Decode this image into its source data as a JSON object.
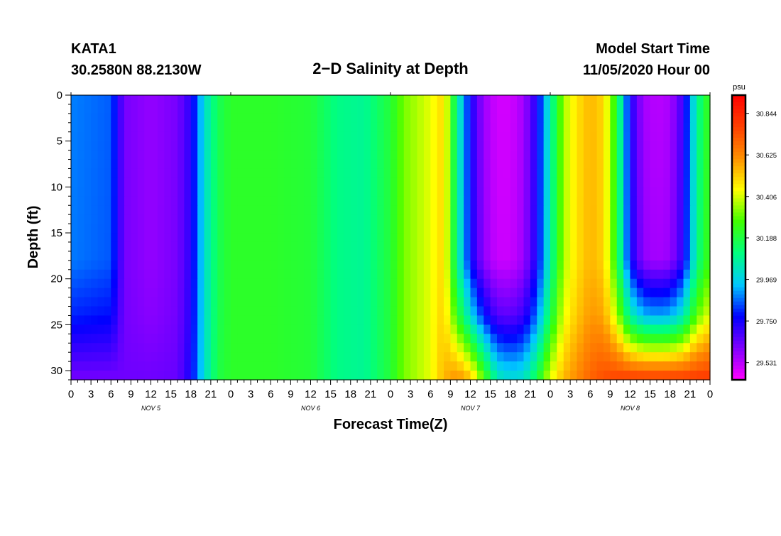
{
  "header": {
    "station": "KATA1",
    "coords": "30.2580N 88.2130W",
    "title": "2−D Salinity at Depth",
    "model_label": "Model Start Time",
    "model_time": "11/05/2020 Hour 00"
  },
  "chart_data": {
    "type": "heatmap",
    "title": "2−D Salinity at Depth",
    "xlabel": "Forecast Time(Z)",
    "ylabel": "Depth (ft)",
    "x_range_hours": [
      0,
      96
    ],
    "y_range": [
      0,
      31
    ],
    "y_inverted": true,
    "x_tick_labels": [
      "0",
      "3",
      "6",
      "9",
      "12",
      "15",
      "18",
      "21",
      "0",
      "3",
      "6",
      "9",
      "12",
      "15",
      "18",
      "21",
      "0",
      "3",
      "6",
      "9",
      "12",
      "15",
      "18",
      "21",
      "0",
      "3",
      "6",
      "9",
      "12",
      "15",
      "18",
      "21",
      "0"
    ],
    "y_tick_labels": [
      "0",
      "5",
      "10",
      "15",
      "20",
      "25",
      "30"
    ],
    "day_labels": [
      {
        "label": "NOV  5",
        "hour": 12
      },
      {
        "label": "NOV  6",
        "hour": 36
      },
      {
        "label": "NOV  7",
        "hour": 60
      },
      {
        "label": "NOV  8",
        "hour": 84
      }
    ],
    "colorbar": {
      "unit": "psu",
      "min": 29.44,
      "max": 30.94,
      "tick_labels": [
        "30.844",
        "30.625",
        "30.406",
        "30.188",
        "29.969",
        "29.750",
        "29.531"
      ],
      "tick_values": [
        30.844,
        30.625,
        30.406,
        30.188,
        29.969,
        29.75,
        29.531
      ],
      "colors": [
        "#ff00ff",
        "#8000ff",
        "#0000ff",
        "#00c8ff",
        "#00ff80",
        "#40ff00",
        "#ffff00",
        "#ff9000",
        "#ff4000",
        "#ff0000"
      ]
    },
    "field_samples": {
      "x_hours": [
        0,
        6,
        8,
        12,
        16,
        18,
        20,
        22,
        24,
        30,
        36,
        40,
        44,
        48,
        50,
        54,
        56,
        58,
        60,
        62,
        64,
        66,
        68,
        70,
        72,
        74,
        76,
        78,
        80,
        82,
        84,
        86,
        88,
        90,
        92,
        94,
        96
      ],
      "surface_psu": [
        29.88,
        29.85,
        29.62,
        29.58,
        29.62,
        29.72,
        30.0,
        30.16,
        30.22,
        30.22,
        30.2,
        30.1,
        30.08,
        30.2,
        30.32,
        30.42,
        30.5,
        30.08,
        29.75,
        29.57,
        29.5,
        29.5,
        29.56,
        29.74,
        30.05,
        30.36,
        30.48,
        30.55,
        30.5,
        30.2,
        29.74,
        29.56,
        29.53,
        29.55,
        29.7,
        30.08,
        30.26
      ],
      "depth_ft": [
        0,
        10,
        20,
        25,
        28,
        29,
        30,
        31
      ],
      "deep_psu": [
        29.62,
        29.62,
        29.63,
        29.63,
        29.64,
        29.75,
        30.0,
        30.18,
        30.22,
        30.22,
        30.2,
        30.1,
        30.08,
        30.2,
        30.32,
        30.42,
        30.55,
        30.62,
        30.55,
        30.3,
        30.05,
        30.0,
        30.02,
        30.18,
        30.42,
        30.55,
        30.62,
        30.7,
        30.75,
        30.78,
        30.8,
        30.8,
        30.8,
        30.8,
        30.8,
        30.8,
        30.8
      ]
    }
  }
}
